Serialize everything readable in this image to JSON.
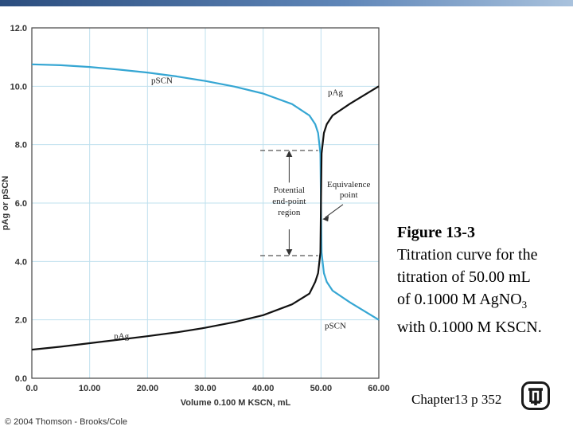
{
  "chart_data": {
    "type": "line",
    "xlabel": "Volume 0.100 M KSCN, mL",
    "ylabel": "pAg or pSCN",
    "xlim": [
      0,
      60
    ],
    "ylim": [
      0,
      12
    ],
    "x_ticks": [
      "0.0",
      "10.00",
      "20.00",
      "30.00",
      "40.00",
      "50.00",
      "60.00"
    ],
    "y_ticks": [
      "0.0",
      "2.0",
      "4.0",
      "6.0",
      "8.0",
      "10.0",
      "12.0"
    ],
    "grid": true,
    "colors": {
      "pSCN": "#35a6d3",
      "pAg": "#111111",
      "grid": "#bfe0ee"
    },
    "series": [
      {
        "name": "pSCN",
        "x": [
          0,
          5,
          10,
          15,
          20,
          25,
          30,
          35,
          40,
          45,
          48,
          49,
          49.5,
          49.9,
          50.0,
          50.1,
          50.5,
          51,
          52,
          55,
          60
        ],
        "y": [
          10.75,
          10.72,
          10.66,
          10.57,
          10.47,
          10.34,
          10.18,
          9.99,
          9.75,
          9.39,
          9.0,
          8.7,
          8.4,
          7.7,
          6.0,
          4.3,
          3.6,
          3.3,
          3.0,
          2.6,
          2.0
        ]
      },
      {
        "name": "pAg",
        "x": [
          0,
          5,
          10,
          15,
          20,
          25,
          30,
          35,
          40,
          45,
          48,
          49,
          49.5,
          49.9,
          50.0,
          50.1,
          50.5,
          51,
          52,
          55,
          60
        ],
        "y": [
          0.98,
          1.08,
          1.2,
          1.32,
          1.44,
          1.57,
          1.73,
          1.92,
          2.16,
          2.53,
          2.9,
          3.3,
          3.6,
          4.3,
          6.0,
          7.7,
          8.4,
          8.7,
          9.0,
          9.4,
          10.0
        ]
      }
    ],
    "annotations": {
      "pscn_top": "pSCN",
      "pag_top": "pAg",
      "pag_bottom": "pAg",
      "pscn_bottom": "pSCN",
      "endpoint_region": [
        "Potential",
        "end-point",
        "region"
      ],
      "equivalence": [
        "Equivalence",
        "point"
      ],
      "endpoint_range": [
        4.2,
        7.8
      ]
    }
  },
  "caption": {
    "title": "Figure 13-3",
    "line1": "Titration curve for the",
    "line2": "titration of 50.00 mL",
    "line3_prefix": "of 0.1000 M AgNO",
    "line3_sub": "3",
    "line4": "with 0.1000 M KSCN."
  },
  "chapter_ref": "Chapter13 p 352",
  "copyright": "© 2004 Thomson - Brooks/Cole"
}
